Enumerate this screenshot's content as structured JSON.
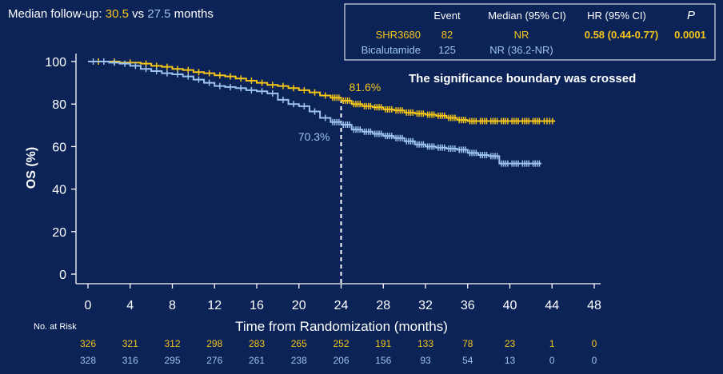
{
  "header": {
    "prefix": "Median follow-up:",
    "v1": "30.5",
    "vs": "vs",
    "v2": "27.5",
    "suffix": "months"
  },
  "table": {
    "headers": [
      "Event",
      "Median (95% CI)",
      "HR (95% CI)",
      "P"
    ],
    "rows": [
      {
        "name": "SHR3680",
        "event": "82",
        "median": "NR",
        "hr": "0.58 (0.44-0.77)",
        "p": "0.0001"
      },
      {
        "name": "Bicalutamide",
        "event": "125",
        "median": "NR (36.2-NR)",
        "hr": "",
        "p": ""
      }
    ]
  },
  "annotation": "The significance boundary was crossed",
  "risk": {
    "label": "No. at Risk",
    "shr": [
      "326",
      "321",
      "312",
      "298",
      "283",
      "265",
      "252",
      "191",
      "133",
      "78",
      "23",
      "1",
      "0"
    ],
    "bic": [
      "328",
      "316",
      "295",
      "276",
      "261",
      "238",
      "206",
      "156",
      "93",
      "54",
      "13",
      "0",
      "0"
    ]
  },
  "colors": {
    "shr": "#f5c518",
    "bic": "#9cc3ec",
    "bg": "#0b2357",
    "axis": "#ffffff"
  },
  "chart_data": {
    "type": "line",
    "xlabel": "Time from Randomization (months)",
    "ylabel": "OS (%)",
    "xticks": [
      0,
      4,
      8,
      12,
      16,
      20,
      24,
      28,
      32,
      36,
      40,
      44,
      48
    ],
    "yticks": [
      0,
      20,
      40,
      60,
      80,
      100
    ],
    "xlim": [
      0,
      48
    ],
    "ylim": [
      0,
      100
    ],
    "reference_x": 24,
    "point_labels": [
      {
        "series": "SHR3680",
        "x": 24,
        "y": 81.6,
        "text": "81.6%"
      },
      {
        "series": "Bicalutamide",
        "x": 24,
        "y": 70.3,
        "text": "70.3%"
      }
    ],
    "series": [
      {
        "name": "SHR3680",
        "x": [
          0,
          2,
          3,
          5,
          6,
          7,
          8,
          9,
          10,
          11,
          12,
          13,
          14,
          15,
          16,
          17,
          18,
          19,
          20,
          21,
          22,
          23,
          24,
          25,
          26,
          27,
          28,
          29,
          30,
          31,
          32,
          33,
          34,
          35,
          36,
          37,
          38,
          39,
          40,
          41,
          42,
          43,
          44.3
        ],
        "y": [
          100,
          100,
          99.5,
          99,
          98,
          97.5,
          96.5,
          96,
          95,
          94.5,
          93.5,
          93,
          92,
          91,
          90,
          89,
          88.5,
          87.5,
          86.5,
          85.5,
          84,
          83,
          81.6,
          80,
          79,
          78.5,
          77.5,
          77,
          76,
          75.5,
          75,
          74.5,
          73.5,
          72.5,
          72,
          72,
          72,
          72,
          72,
          72,
          72,
          72,
          72
        ]
      },
      {
        "name": "Bicalutamide",
        "x": [
          0,
          1,
          2,
          3,
          4,
          5,
          6,
          7,
          8,
          9,
          10,
          11,
          12,
          13,
          14,
          15,
          16,
          17,
          18,
          19,
          20,
          21,
          22,
          23,
          24,
          25,
          26,
          27,
          28,
          29,
          30,
          31,
          32,
          33,
          34,
          35,
          36,
          37,
          38,
          39,
          40,
          41,
          42,
          43
        ],
        "y": [
          100,
          100,
          99.5,
          99,
          98,
          96.5,
          95.5,
          94.5,
          94,
          93,
          91.5,
          90,
          88.5,
          88,
          87.5,
          86.5,
          86,
          85,
          82,
          80,
          79,
          76.5,
          73.5,
          71.5,
          70.3,
          68,
          67,
          66,
          65,
          64,
          62.5,
          61,
          60,
          59.5,
          59,
          58.5,
          57,
          56,
          55.5,
          52,
          52,
          52,
          52,
          52
        ]
      }
    ]
  }
}
